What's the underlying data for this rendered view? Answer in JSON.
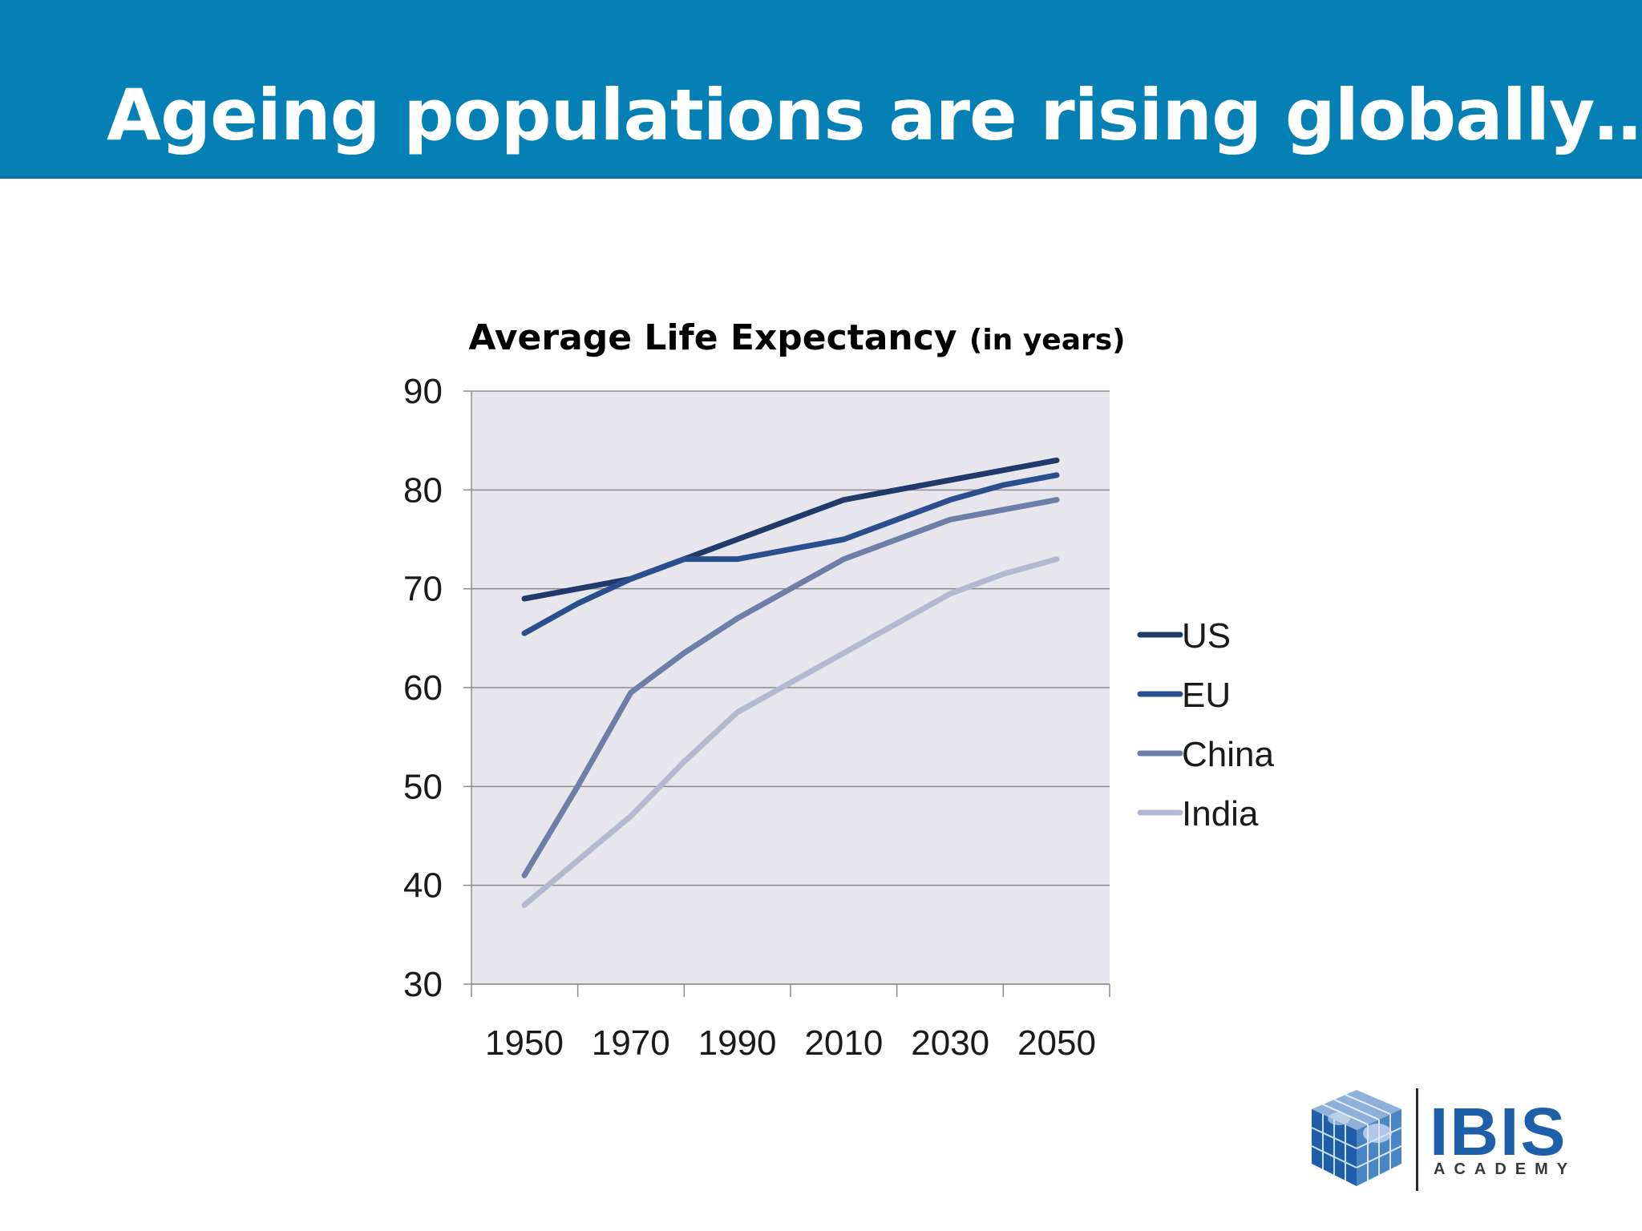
{
  "slide": {
    "title": "Ageing populations are rising globally…"
  },
  "chart_data": {
    "type": "line",
    "title": "Average Life Expectancy",
    "title_unit": "(in years)",
    "xlabel": "",
    "ylabel": "",
    "categories": [
      "1950",
      "1970",
      "1990",
      "2010",
      "2030",
      "2050"
    ],
    "x": [
      1950,
      1960,
      1970,
      1980,
      1990,
      2000,
      2010,
      2020,
      2030,
      2040,
      2050
    ],
    "yticks": [
      "30",
      "40",
      "50",
      "60",
      "70",
      "80",
      "90"
    ],
    "ylim": [
      30,
      90
    ],
    "grid": true,
    "legend": "right",
    "series": [
      {
        "name": "US",
        "color": "#1f3a6b",
        "values": [
          69,
          70,
          71,
          73,
          75,
          77,
          79,
          80,
          81,
          82,
          83
        ]
      },
      {
        "name": "EU",
        "color": "#2a4f8f",
        "values": [
          65.5,
          68.5,
          71,
          73,
          73,
          74,
          75,
          77,
          79,
          80.5,
          81.5
        ]
      },
      {
        "name": "China",
        "color": "#6d7fa8",
        "values": [
          41,
          50,
          59.5,
          63.5,
          67,
          70,
          73,
          75,
          77,
          78,
          79
        ]
      },
      {
        "name": "India",
        "color": "#b4b9cf",
        "values": [
          38,
          42.5,
          47,
          52.5,
          57.5,
          60.5,
          63.5,
          66.5,
          69.5,
          71.5,
          73
        ]
      }
    ]
  },
  "logo": {
    "name": "IBIS",
    "subtitle": "ACADEMY"
  }
}
